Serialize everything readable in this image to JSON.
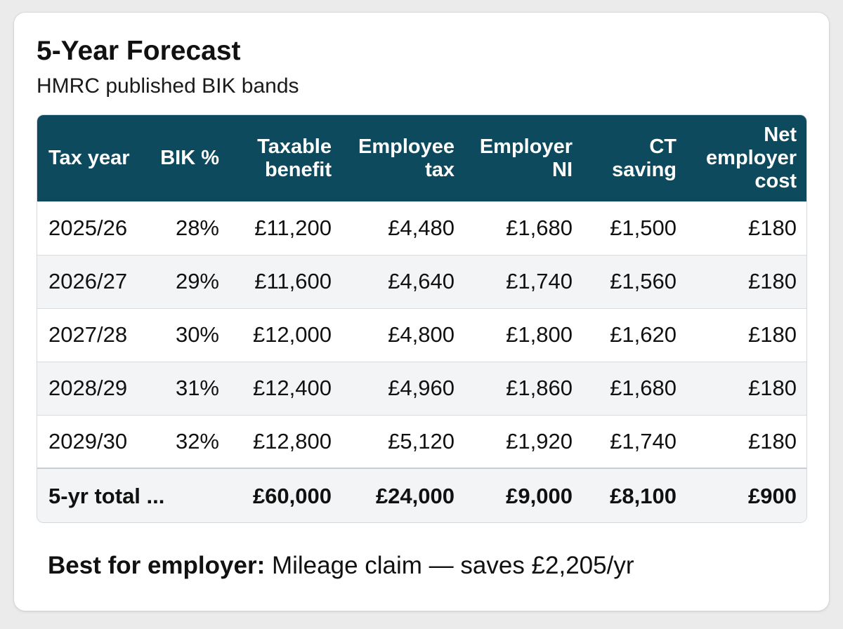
{
  "card": {
    "title": "5-Year Forecast",
    "subtitle": "HMRC published BIK bands"
  },
  "table": {
    "headers": {
      "tax_year": "Tax year",
      "bik_pct": "BIK %",
      "taxable_benefit_l1": "Taxable",
      "taxable_benefit_l2": "benefit",
      "employee_tax_l1": "Employee",
      "employee_tax_l2": "tax",
      "employer_ni_l1": "Employer",
      "employer_ni_l2": "NI",
      "ct_saving_l1": "CT",
      "ct_saving_l2": "saving",
      "net_employer_cost_l1": "Net",
      "net_employer_cost_l2": "employer",
      "net_employer_cost_l3": "cost"
    },
    "rows": [
      {
        "tax_year": "2025/26",
        "bik_pct": "28%",
        "taxable_benefit": "£11,200",
        "employee_tax": "£4,480",
        "employer_ni": "£1,680",
        "ct_saving": "£1,500",
        "net_employer_cost": "£180"
      },
      {
        "tax_year": "2026/27",
        "bik_pct": "29%",
        "taxable_benefit": "£11,600",
        "employee_tax": "£4,640",
        "employer_ni": "£1,740",
        "ct_saving": "£1,560",
        "net_employer_cost": "£180"
      },
      {
        "tax_year": "2027/28",
        "bik_pct": "30%",
        "taxable_benefit": "£12,000",
        "employee_tax": "£4,800",
        "employer_ni": "£1,800",
        "ct_saving": "£1,620",
        "net_employer_cost": "£180"
      },
      {
        "tax_year": "2028/29",
        "bik_pct": "31%",
        "taxable_benefit": "£12,400",
        "employee_tax": "£4,960",
        "employer_ni": "£1,860",
        "ct_saving": "£1,680",
        "net_employer_cost": "£180"
      },
      {
        "tax_year": "2029/30",
        "bik_pct": "32%",
        "taxable_benefit": "£12,800",
        "employee_tax": "£5,120",
        "employer_ni": "£1,920",
        "ct_saving": "£1,740",
        "net_employer_cost": "£180"
      }
    ],
    "total": {
      "label": "5-yr total ...",
      "taxable_benefit": "£60,000",
      "employee_tax": "£24,000",
      "employer_ni": "£9,000",
      "ct_saving": "£8,100",
      "net_employer_cost": "£900"
    }
  },
  "summary": {
    "label": "Best for employer:",
    "text": " Mileage claim — saves £2,205/yr"
  },
  "colors": {
    "header_bg": "#0d4a5e",
    "header_text": "#ffffff",
    "alt_row_bg": "#f3f4f5"
  }
}
